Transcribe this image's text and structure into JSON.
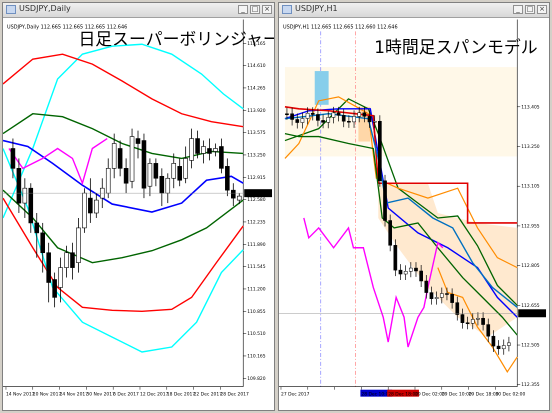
{
  "colors": {
    "upper3": "#00ffff",
    "upper2": "#ff0000",
    "upper1": "#006400",
    "middle": "#0000ff",
    "lagging": "#ff00ff",
    "candle": "#000000",
    "cloud_a": "#87ceeb",
    "cloud_b": "#ffd7a8",
    "tenkan": "#0070c0",
    "kijun": "#e00000",
    "senkou_b": "#ff8c00"
  },
  "daily": {
    "window_title": "USDJPY,Daily",
    "icons": [
      "chart-window-icon",
      "minimize-icon",
      "maximize-icon",
      "close-icon"
    ],
    "info": "USDJPY,Daily  112.665 112.665 112.665 112.646",
    "heading": "日足スーパーボリンジャー",
    "price_axis": [
      "113.165",
      "114.610",
      "114.265",
      "113.920",
      "113.575",
      "113.250",
      "112.915",
      "112.580",
      "112.235",
      "111.890",
      "111.545",
      "111.200",
      "110.855",
      "110.510",
      "110.165",
      "109.820"
    ],
    "current_price": "112.646",
    "date_axis": [
      "14 Nov 2017",
      "20 Nov 2017",
      "24 Nov 2017",
      "30 Nov 2017",
      "6 Dec 2017",
      "12 Dec 2017",
      "18 Dec 2017",
      "22 Dec 2017",
      "28 Dec 2017"
    ]
  },
  "hourly": {
    "window_title": "USDJPY,H1",
    "icons": [
      "chart-window-icon",
      "minimize-icon",
      "maximize-icon",
      "close-icon"
    ],
    "info": "USDJPY,H1  112.665 112.665 112.660 112.646",
    "heading": "1時間足スパンモデル",
    "price_axis": [
      "113.405",
      "113.250",
      "113.105",
      "112.955",
      "112.805",
      "112.655",
      "112.505",
      "112.355",
      "112.205"
    ],
    "current_price": "112.646",
    "date_axis": [
      "27 Dec 2017",
      "",
      "",
      "28 Dec 10:00",
      "28 Dec 18:00",
      "29 Dec 02:00",
      "29 Dec 10:00",
      "29 Dec 18:00",
      "30 Dec 02:00"
    ],
    "highlighted_dates": [
      "28 Dec 10:00",
      "28 Dec 18:00"
    ]
  }
}
